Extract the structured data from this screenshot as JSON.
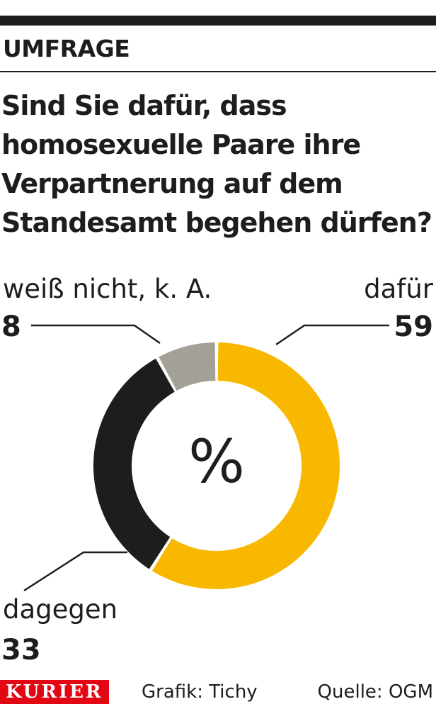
{
  "header": {
    "kicker": "UMFRAGE",
    "question_lines": [
      "Sind Sie dafür, dass",
      "homosexuelle Paare ihre",
      "Verpartnerung auf dem",
      "Standesamt begehen dürfen?"
    ]
  },
  "chart_data": {
    "type": "pie",
    "center_label": "%",
    "slices": [
      {
        "label": "dafür",
        "value": 59,
        "color": "#f9b800"
      },
      {
        "label": "dagegen",
        "value": 33,
        "color": "#1d1d1b"
      },
      {
        "label": "weiß nicht, k. A.",
        "value": 8,
        "color": "#a3a097"
      }
    ]
  },
  "footer": {
    "brand": "KURIER",
    "credit": "Grafik: Tichy",
    "source": "Quelle: OGM"
  },
  "colors": {
    "brand_red": "#e30613",
    "text": "#1d1d1b"
  }
}
